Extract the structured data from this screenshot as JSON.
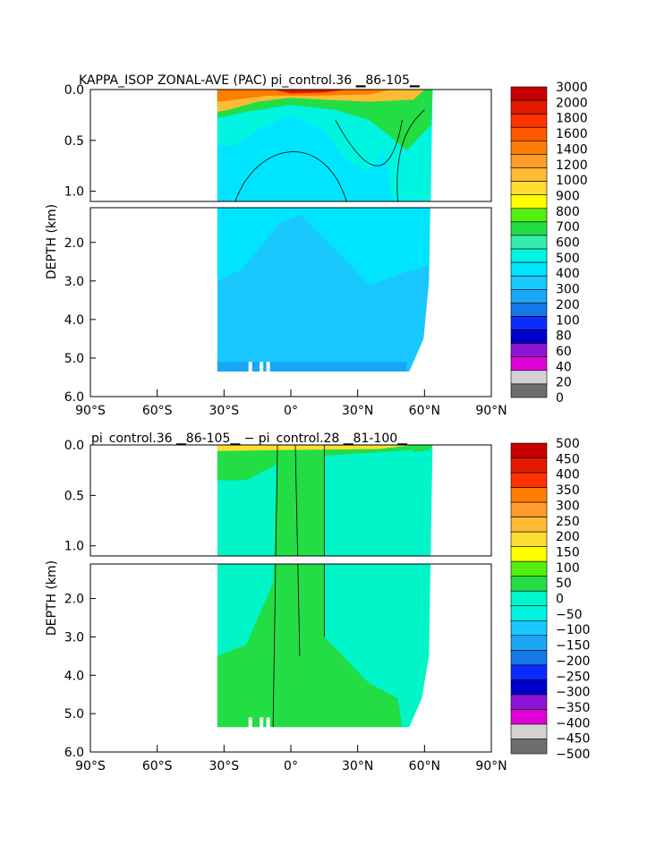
{
  "chart_data": [
    {
      "type": "heatmap",
      "title": "KAPPA_ISOP ZONAL-AVE (PAC) pi_control.36 ▁86-105▁",
      "ylabel": "DEPTH (km)",
      "xlabel": "",
      "xlim": [
        -90,
        90
      ],
      "ylim": [
        0,
        6.0
      ],
      "xticks": [
        -90,
        -60,
        -30,
        0,
        30,
        60,
        90
      ],
      "xtick_labels": [
        "90°S",
        "60°S",
        "30°S",
        "0°",
        "30°N",
        "60°N",
        "90°N"
      ],
      "upper_yticks": [
        0.0,
        0.5,
        1.0
      ],
      "upper_ytick_labels": [
        "0.0",
        "0.5",
        "1.0"
      ],
      "lower_yticks": [
        2.0,
        3.0,
        4.0,
        5.0,
        6.0
      ],
      "lower_ytick_labels": [
        "2.0",
        "3.0",
        "4.0",
        "5.0",
        "6.0"
      ],
      "colorbar": {
        "levels": [
          "3000",
          "2000",
          "1800",
          "1600",
          "1400",
          "1200",
          "1000",
          "900",
          "800",
          "700",
          "600",
          "500",
          "400",
          "300",
          "200",
          "100",
          "80",
          "60",
          "40",
          "20",
          "0"
        ],
        "colors": [
          "#c80000",
          "#e41a00",
          "#ff3300",
          "#ff5a00",
          "#ff7d00",
          "#ff9d2b",
          "#ffbb33",
          "#ffdd33",
          "#ffff00",
          "#55ee11",
          "#22dd44",
          "#33eeaa",
          "#00f5e1",
          "#00e5ff",
          "#18c8ff",
          "#1aa6f5",
          "#1677e6",
          "#0c2cff",
          "#0000cc",
          "#8c14d6",
          "#e000d8",
          "#d2d2d2",
          "#6e6e6e"
        ]
      },
      "data_extent": {
        "lat_min": -33,
        "lat_max": 62,
        "max_depth_km": 5.35
      }
    },
    {
      "type": "heatmap",
      "title": "pi_control.36 ▁86-105▁ − pi_control.28 ▁81-100▁",
      "ylabel": "DEPTH (km)",
      "xlabel": "",
      "xlim": [
        -90,
        90
      ],
      "ylim": [
        0,
        6.0
      ],
      "xticks": [
        -90,
        -60,
        -30,
        0,
        30,
        60,
        90
      ],
      "xtick_labels": [
        "90°S",
        "60°S",
        "30°S",
        "0°",
        "30°N",
        "60°N",
        "90°N"
      ],
      "upper_yticks": [
        0.0,
        0.5,
        1.0
      ],
      "upper_ytick_labels": [
        "0.0",
        "0.5",
        "1.0"
      ],
      "lower_yticks": [
        2.0,
        3.0,
        4.0,
        5.0,
        6.0
      ],
      "lower_ytick_labels": [
        "2.0",
        "3.0",
        "4.0",
        "5.0",
        "6.0"
      ],
      "colorbar": {
        "levels": [
          "500",
          "450",
          "400",
          "350",
          "300",
          "250",
          "200",
          "150",
          "100",
          "50",
          "0",
          "−50",
          "−100",
          "−150",
          "−200",
          "−250",
          "−300",
          "−350",
          "−400",
          "−450",
          "−500"
        ],
        "colors": [
          "#c80000",
          "#e41a00",
          "#ff3300",
          "#ff7d00",
          "#ff9d2b",
          "#ffbb33",
          "#ffdd33",
          "#ffff00",
          "#55ee11",
          "#22dd44",
          "#00f5c8",
          "#00f5e1",
          "#18c8ff",
          "#1aa6f5",
          "#1677e6",
          "#0c2cff",
          "#0000cc",
          "#8c14d6",
          "#e000d8",
          "#d2d2d2",
          "#6e6e6e"
        ]
      },
      "data_extent": {
        "lat_min": -33,
        "lat_max": 62,
        "max_depth_km": 5.35
      }
    }
  ]
}
